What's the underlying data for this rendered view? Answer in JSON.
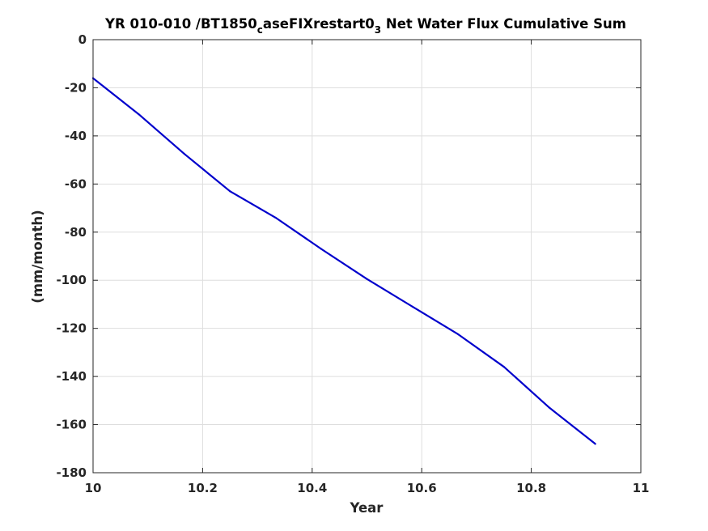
{
  "chart_data": {
    "type": "line",
    "title": {
      "parts": [
        {
          "text": "YR 010-010 /BT1850",
          "sub": false
        },
        {
          "text": "c",
          "sub": true
        },
        {
          "text": "aseFIXrestart0",
          "sub": false
        },
        {
          "text": "3",
          "sub": true
        },
        {
          "text": " Net Water Flux Cumulative Sum",
          "sub": false
        }
      ]
    },
    "xlabel": "Year",
    "ylabel": "(mm/month)",
    "xlim": [
      10,
      11
    ],
    "ylim": [
      -180,
      0
    ],
    "xticks": [
      10,
      10.2,
      10.4,
      10.6,
      10.8,
      11
    ],
    "xtick_labels": [
      "10",
      "10.2",
      "10.4",
      "10.6",
      "10.8",
      "11"
    ],
    "yticks": [
      0,
      -20,
      -40,
      -60,
      -80,
      -100,
      -120,
      -140,
      -160,
      -180
    ],
    "ytick_labels": [
      "0",
      "-20",
      "-40",
      "-60",
      "-80",
      "-100",
      "-120",
      "-140",
      "-160",
      "-180"
    ],
    "grid": true,
    "series": [
      {
        "color": "#0000cc",
        "x": [
          10.0,
          10.0833,
          10.1667,
          10.25,
          10.3333,
          10.4167,
          10.5,
          10.5833,
          10.6667,
          10.75,
          10.8333,
          10.9167
        ],
        "y": [
          -16,
          -31,
          -47.5,
          -63,
          -74,
          -87,
          -99.5,
          -111,
          -122.5,
          -136,
          -153,
          -168
        ]
      }
    ]
  }
}
